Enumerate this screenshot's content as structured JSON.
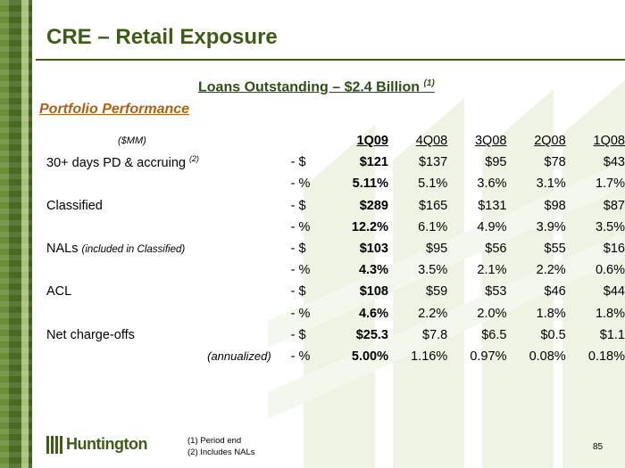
{
  "title": "CRE – Retail Exposure",
  "subtitle": {
    "text": "Loans Outstanding – $2.4 Billion ",
    "footnote_ref": "(1)"
  },
  "section_title": "Portfolio Performance",
  "table": {
    "units_label": "($MM)",
    "columns": [
      "1Q09",
      "4Q08",
      "3Q08",
      "2Q08",
      "1Q08"
    ],
    "rows": [
      {
        "label": "30+ days PD & accruing ",
        "label_sup": "(2)",
        "unit": "- $",
        "values": [
          "$121",
          "$137",
          "$95",
          "$78",
          "$43"
        ]
      },
      {
        "label": "",
        "unit": "- %",
        "values": [
          "5.11%",
          "5.1%",
          "3.6%",
          "3.1%",
          "1.7%"
        ]
      },
      {
        "label": "Classified",
        "unit": "- $",
        "values": [
          "$289",
          "$165",
          "$131",
          "$98",
          "$87"
        ]
      },
      {
        "label": "",
        "unit": "- %",
        "values": [
          "12.2%",
          "6.1%",
          "4.9%",
          "3.9%",
          "3.5%"
        ]
      },
      {
        "label": "NALs ",
        "label_note": "(included in Classified)",
        "unit": "- $",
        "values": [
          "$103",
          "$95",
          "$56",
          "$55",
          "$16"
        ]
      },
      {
        "label": "",
        "unit": "- %",
        "values": [
          "4.3%",
          "3.5%",
          "2.1%",
          "2.2%",
          "0.6%"
        ]
      },
      {
        "label": "ACL",
        "unit": "- $",
        "values": [
          "$108",
          "$59",
          "$53",
          "$46",
          "$44"
        ]
      },
      {
        "label": "",
        "unit": "- %",
        "values": [
          "4.6%",
          "2.2%",
          "2.0%",
          "1.8%",
          "1.8%"
        ]
      },
      {
        "label": "Net charge-offs",
        "unit": "- $",
        "values": [
          "$25.3",
          "$7.8",
          "$6.5",
          "$0.5",
          "$1.1"
        ]
      },
      {
        "label": "(annualized)",
        "unit": "- %",
        "values": [
          "5.00%",
          "1.16%",
          "0.97%",
          "0.08%",
          "0.18%"
        ]
      }
    ]
  },
  "footnotes": [
    "(1)  Period end",
    "(2)  Includes NALs"
  ],
  "logo_text": "Huntington",
  "page_number": "85",
  "colors": {
    "title": "#3d5c16",
    "section": "#b35f12",
    "band": "#4a6a22"
  }
}
